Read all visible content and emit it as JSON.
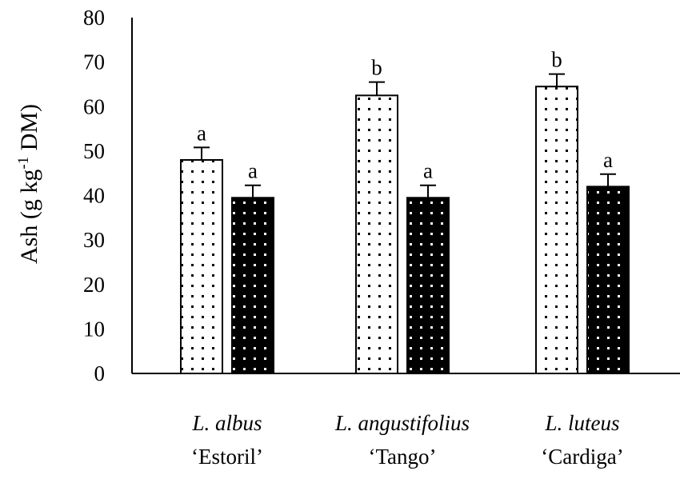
{
  "chart_data": {
    "type": "bar",
    "title": "",
    "xlabel": "",
    "ylabel": {
      "prefix": "Ash (g kg",
      "superscript": "-1",
      "suffix": " DM)"
    },
    "ylim": [
      0,
      80
    ],
    "yticks": [
      "0",
      "10",
      "20",
      "30",
      "40",
      "50",
      "60",
      "70",
      "80"
    ],
    "grid": false,
    "legend": "none",
    "categories": [
      {
        "species": "L. albus",
        "cultivar": "‘Estoril’"
      },
      {
        "species": "L. angustifolius",
        "cultivar": "‘Tango’"
      },
      {
        "species": "L. luteus",
        "cultivar": "‘Cardiga’"
      }
    ],
    "series": [
      {
        "style": "white-dotted",
        "values": [
          48,
          62.5,
          64.5
        ],
        "errors": [
          2.8,
          3.0,
          2.8
        ],
        "labels": [
          "a",
          "b",
          "b"
        ]
      },
      {
        "style": "black-dotted",
        "values": [
          39.5,
          39.5,
          42
        ],
        "errors": [
          2.8,
          2.8,
          2.8
        ],
        "labels": [
          "a",
          "a",
          "a"
        ]
      }
    ],
    "colors": {
      "series_1_fill": "#ffffff",
      "series_1_dots": "#000000",
      "series_2_fill": "#000000",
      "series_2_dots": "#ffffff",
      "axis": "#000000"
    }
  }
}
